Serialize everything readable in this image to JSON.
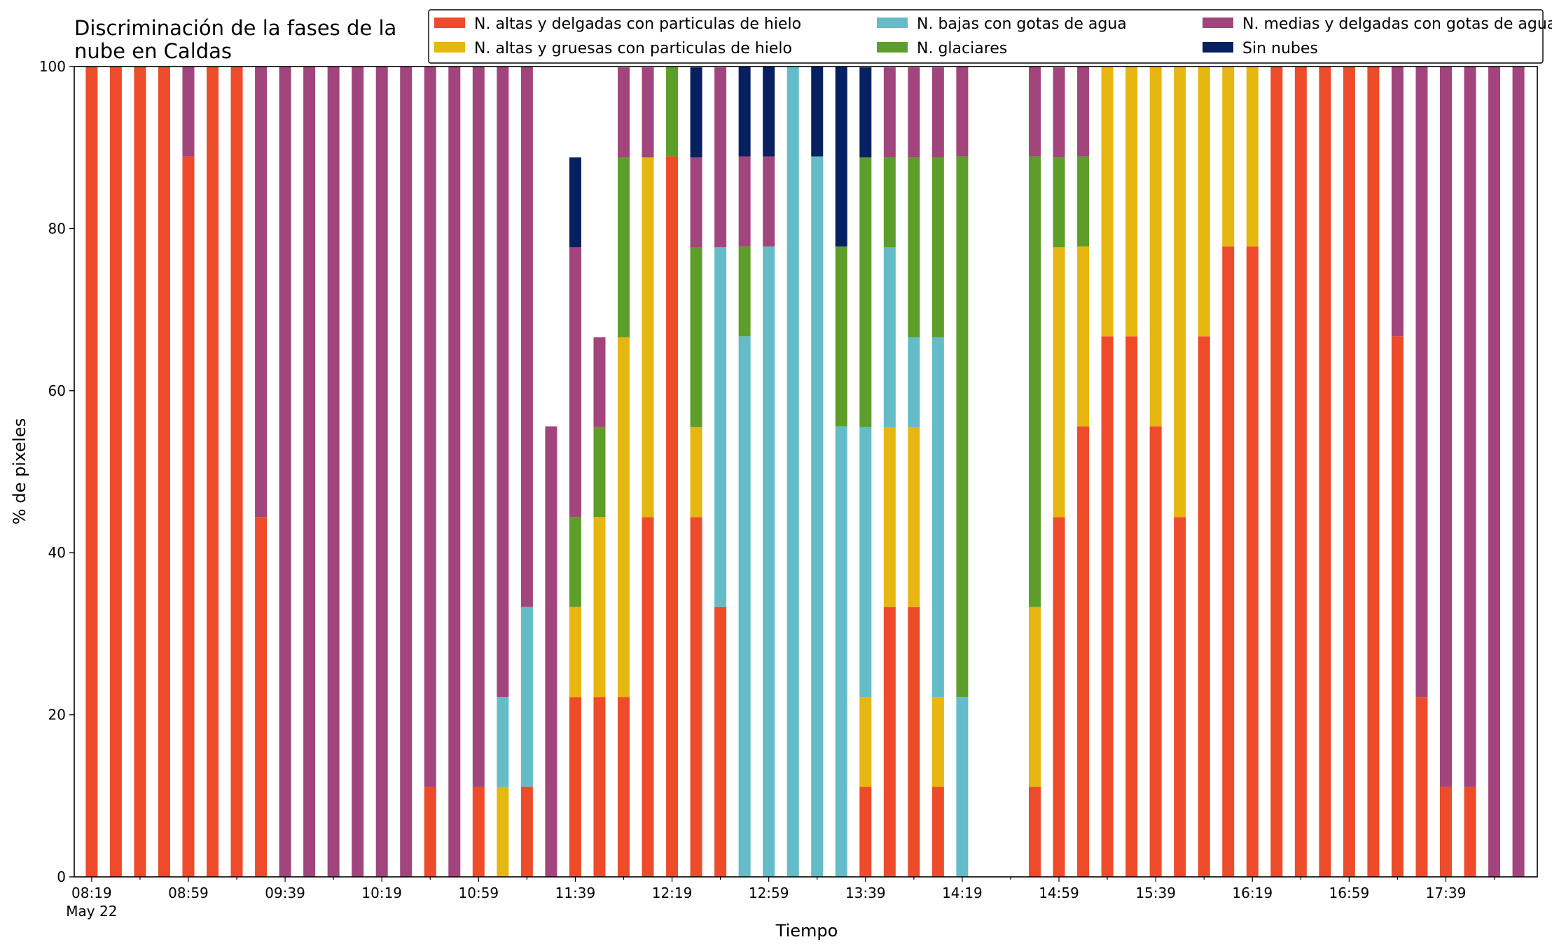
{
  "chart_data": {
    "type": "bar",
    "stacked": true,
    "title": "Discriminación de la fases de la nube en Caldas",
    "title_lines": [
      "Discriminación de la fases de la",
      "nube en Caldas"
    ],
    "xlabel": "Tiempo",
    "ylabel": "% de pixeles",
    "ylim": [
      0,
      100
    ],
    "yticks": [
      0,
      20,
      40,
      60,
      80,
      100
    ],
    "xticks": [
      {
        "slot": 0,
        "label": "08:19",
        "sublabel": "May 22"
      },
      {
        "slot": 4,
        "label": "08:59"
      },
      {
        "slot": 8,
        "label": "09:39"
      },
      {
        "slot": 12,
        "label": "10:19"
      },
      {
        "slot": 16,
        "label": "10:59"
      },
      {
        "slot": 20,
        "label": "11:39"
      },
      {
        "slot": 24,
        "label": "12:19"
      },
      {
        "slot": 28,
        "label": "12:59"
      },
      {
        "slot": 32,
        "label": "13:39"
      },
      {
        "slot": 36,
        "label": "14:19"
      },
      {
        "slot": 40,
        "label": "14:59"
      },
      {
        "slot": 44,
        "label": "15:39"
      },
      {
        "slot": 48,
        "label": "16:19"
      },
      {
        "slot": 52,
        "label": "16:59"
      },
      {
        "slot": 56,
        "label": "17:39"
      }
    ],
    "time_step_minutes": 10,
    "grid": false,
    "legend": {
      "position": "top-right",
      "columns": 3
    },
    "series": [
      {
        "name": "N. altas y delgadas con particulas de hielo",
        "color": "#EE4B2B",
        "values": [
          100,
          100,
          100,
          100,
          88.9,
          100,
          100,
          44.4,
          0,
          0,
          0,
          0,
          0,
          0,
          11.1,
          0,
          11.1,
          0,
          11.1,
          0,
          22.2,
          22.2,
          22.2,
          44.4,
          88.9,
          44.4,
          33.3,
          0,
          0,
          0,
          0,
          0,
          11.1,
          33.3,
          33.3,
          11.1,
          0,
          0,
          0,
          11.1,
          44.4,
          55.6,
          66.7,
          66.7,
          55.6,
          44.4,
          66.7,
          77.8,
          77.8,
          100,
          100,
          100,
          100,
          100,
          66.7,
          22.2,
          11.1,
          11.1,
          0,
          0
        ]
      },
      {
        "name": "N. altas y gruesas con particulas de hielo",
        "color": "#E6B611",
        "values": [
          0,
          0,
          0,
          0,
          0,
          0,
          0,
          0,
          0,
          0,
          0,
          0,
          0,
          0,
          0,
          0,
          0,
          11.1,
          0,
          0,
          11.1,
          22.2,
          44.4,
          44.4,
          0,
          11.1,
          0,
          0,
          0,
          0,
          0,
          0,
          11.1,
          22.2,
          22.2,
          11.1,
          0,
          0,
          0,
          22.2,
          33.3,
          22.2,
          33.3,
          33.3,
          44.4,
          55.6,
          33.3,
          22.2,
          22.2,
          0,
          0,
          0,
          0,
          0,
          0,
          0,
          0,
          0,
          0,
          0
        ]
      },
      {
        "name": "N. bajas con gotas de agua",
        "color": "#63BCC7",
        "values": [
          0,
          0,
          0,
          0,
          0,
          0,
          0,
          0,
          0,
          0,
          0,
          0,
          0,
          0,
          0,
          0,
          0,
          11.1,
          22.2,
          0,
          0,
          0,
          0,
          0,
          0,
          0,
          44.4,
          66.7,
          77.8,
          100,
          88.9,
          55.6,
          33.3,
          22.2,
          11.1,
          44.4,
          22.2,
          0,
          0,
          0,
          0,
          0,
          0,
          0,
          0,
          0,
          0,
          0,
          0,
          0,
          0,
          0,
          0,
          0,
          0,
          0,
          0,
          0,
          0,
          0
        ]
      },
      {
        "name": "N. glaciares",
        "color": "#5D9E2B",
        "values": [
          0,
          0,
          0,
          0,
          0,
          0,
          0,
          0,
          0,
          0,
          0,
          0,
          0,
          0,
          0,
          0,
          0,
          0,
          0,
          0,
          11.1,
          11.1,
          22.2,
          0,
          11.1,
          22.2,
          0,
          11.1,
          0,
          0,
          0,
          22.2,
          33.3,
          11.1,
          22.2,
          22.2,
          66.7,
          0,
          0,
          55.6,
          11.1,
          11.1,
          0,
          0,
          0,
          0,
          0,
          0,
          0,
          0,
          0,
          0,
          0,
          0,
          0,
          0,
          0,
          0,
          0,
          0
        ]
      },
      {
        "name": "N. medias y delgadas con gotas de agua",
        "color": "#A2457C",
        "values": [
          0,
          0,
          0,
          0,
          11.1,
          0,
          0,
          55.6,
          100,
          100,
          100,
          100,
          100,
          100,
          88.9,
          100,
          88.9,
          77.8,
          66.7,
          55.6,
          33.3,
          11.1,
          11.1,
          11.1,
          0,
          11.1,
          22.2,
          11.1,
          11.1,
          0,
          0,
          0,
          0,
          11.1,
          11.1,
          11.1,
          11.1,
          0,
          0,
          11.1,
          11.1,
          11.1,
          0,
          0,
          0,
          0,
          0,
          0,
          0,
          0,
          0,
          0,
          0,
          0,
          33.3,
          77.8,
          88.9,
          88.9,
          100,
          100
        ]
      },
      {
        "name": "Sin nubes",
        "color": "#062060",
        "values": [
          0,
          0,
          0,
          0,
          0,
          0,
          0,
          0,
          0,
          0,
          0,
          0,
          0,
          0,
          0,
          0,
          0,
          0,
          0,
          0,
          11.1,
          0,
          0,
          0,
          0,
          11.1,
          0,
          11.1,
          11.1,
          0,
          11.1,
          22.2,
          11.1,
          0,
          0,
          0,
          0,
          0,
          0,
          0,
          0,
          0,
          0,
          0,
          0,
          0,
          0,
          0,
          0,
          0,
          0,
          0,
          0,
          0,
          0,
          0,
          0,
          0,
          0,
          0
        ]
      }
    ]
  }
}
